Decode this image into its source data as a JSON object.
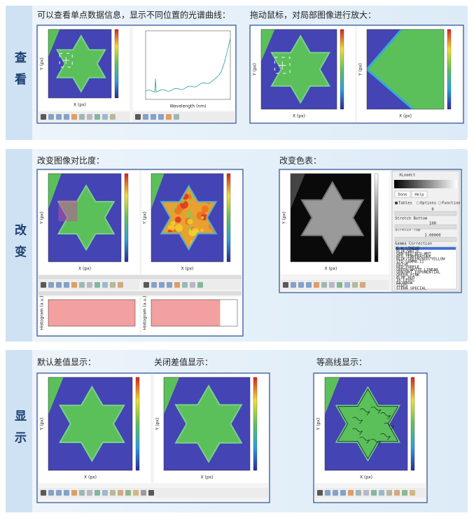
{
  "sections": [
    {
      "label": "查看",
      "panels": [
        {
          "caption": "可以查看单点数据信息，显示不同位置的光谱曲线："
        },
        {
          "caption": "拖动鼠标，对局部图像进行放大："
        }
      ]
    },
    {
      "label": "改变",
      "panels": [
        {
          "caption": "改变图像对比度："
        },
        {
          "caption": "改变色表："
        }
      ]
    },
    {
      "label": "显示",
      "panels": [
        {
          "caption": "默认差值显示："
        },
        {
          "caption": "关闭差值显示："
        },
        {
          "caption": "等高线显示："
        }
      ]
    }
  ],
  "axes": {
    "x": "X (px)",
    "y": "Y (px)",
    "wavelength": "Wavelength (nm)",
    "histogram": "Histogram (a.u.)"
  },
  "xloadct": {
    "title": "XLoadct",
    "buttons": [
      "Done",
      "Help"
    ],
    "modes": [
      "Tables",
      "Options",
      "Function"
    ],
    "stretch_bottom": "Stretch Bottom",
    "stretch_bottom_value": "0",
    "stretch_top": "Stretch Top",
    "stretch_top_value": "100",
    "gamma": "Gamma Correction",
    "gamma_value": "1.00000",
    "tables": [
      "B-W LINEAR",
      "BLUE/WHITE",
      "GRN-RED-BLU-WHT",
      "RED TEMPERATURE",
      "BLUE/GREEN/RED/YELLOW",
      "STD GAMMA-II",
      "PRISM",
      "RED-PURPLE",
      "GREEN/WHITE LINEAR",
      "GRN/WHT EXPONENTIAL",
      "GREEN-PINK",
      "BLUE-RED",
      "16 LEVEL",
      "RAINBOW",
      "STEPS",
      "STERN SPECIAL"
    ]
  }
}
